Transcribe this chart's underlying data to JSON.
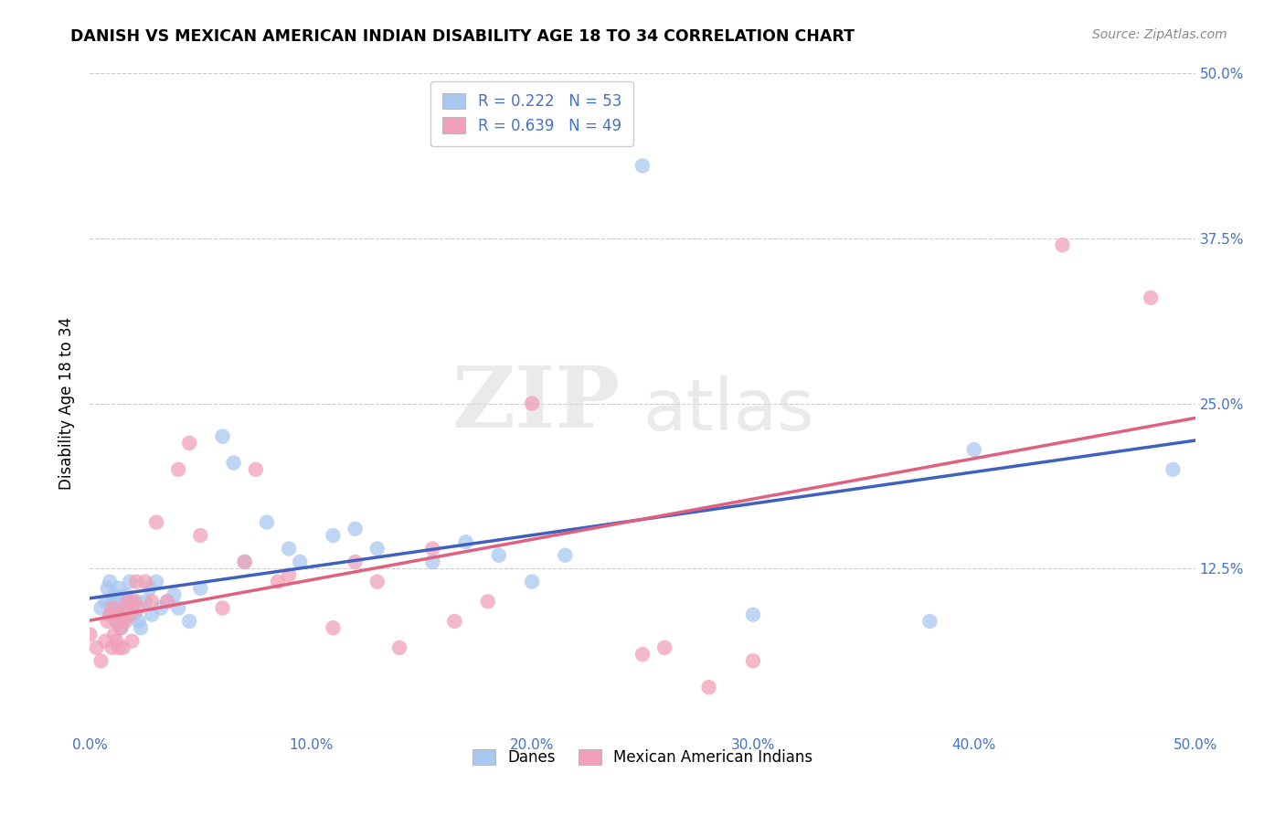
{
  "title": "DANISH VS MEXICAN AMERICAN INDIAN DISABILITY AGE 18 TO 34 CORRELATION CHART",
  "source": "Source: ZipAtlas.com",
  "ylabel": "Disability Age 18 to 34",
  "xlim": [
    0.0,
    0.5
  ],
  "ylim": [
    0.0,
    0.5
  ],
  "xticks": [
    0.0,
    0.1,
    0.2,
    0.3,
    0.4,
    0.5
  ],
  "yticks": [
    0.0,
    0.125,
    0.25,
    0.375,
    0.5
  ],
  "xticklabels": [
    "0.0%",
    "10.0%",
    "20.0%",
    "30.0%",
    "40.0%",
    "50.0%"
  ],
  "yticklabels_left": [
    "",
    "",
    "",
    "",
    ""
  ],
  "yticklabels_right": [
    "",
    "12.5%",
    "25.0%",
    "37.5%",
    "50.0%"
  ],
  "legend_label1": "R = 0.222   N = 53",
  "legend_label2": "R = 0.639   N = 49",
  "legend_label_danes": "Danes",
  "legend_label_mexican": "Mexican American Indians",
  "color_blue": "#A8C8F0",
  "color_pink": "#F0A0B8",
  "color_blue_line": "#4060C0",
  "color_pink_line": "#E06080",
  "color_blue_text": "#4472C4",
  "watermark_zip": "ZIP",
  "watermark_atlas": "atlas",
  "danes_x": [
    0.005,
    0.007,
    0.008,
    0.009,
    0.01,
    0.01,
    0.011,
    0.012,
    0.012,
    0.013,
    0.013,
    0.014,
    0.014,
    0.015,
    0.015,
    0.016,
    0.016,
    0.017,
    0.018,
    0.019,
    0.02,
    0.021,
    0.022,
    0.023,
    0.025,
    0.027,
    0.028,
    0.03,
    0.032,
    0.035,
    0.038,
    0.04,
    0.045,
    0.05,
    0.06,
    0.065,
    0.07,
    0.08,
    0.09,
    0.095,
    0.11,
    0.12,
    0.13,
    0.155,
    0.17,
    0.185,
    0.2,
    0.215,
    0.25,
    0.3,
    0.38,
    0.4,
    0.49
  ],
  "danes_y": [
    0.095,
    0.1,
    0.11,
    0.115,
    0.09,
    0.1,
    0.105,
    0.085,
    0.095,
    0.1,
    0.11,
    0.08,
    0.095,
    0.1,
    0.085,
    0.09,
    0.105,
    0.1,
    0.115,
    0.095,
    0.09,
    0.1,
    0.085,
    0.08,
    0.1,
    0.11,
    0.09,
    0.115,
    0.095,
    0.1,
    0.105,
    0.095,
    0.085,
    0.11,
    0.225,
    0.205,
    0.13,
    0.16,
    0.14,
    0.13,
    0.15,
    0.155,
    0.14,
    0.13,
    0.145,
    0.135,
    0.115,
    0.135,
    0.43,
    0.09,
    0.085,
    0.215,
    0.2
  ],
  "mexican_x": [
    0.0,
    0.003,
    0.005,
    0.007,
    0.008,
    0.009,
    0.01,
    0.01,
    0.011,
    0.012,
    0.012,
    0.013,
    0.013,
    0.014,
    0.015,
    0.015,
    0.016,
    0.017,
    0.018,
    0.019,
    0.02,
    0.021,
    0.022,
    0.025,
    0.028,
    0.03,
    0.035,
    0.04,
    0.045,
    0.05,
    0.06,
    0.07,
    0.075,
    0.085,
    0.09,
    0.11,
    0.12,
    0.13,
    0.14,
    0.155,
    0.165,
    0.18,
    0.2,
    0.25,
    0.26,
    0.28,
    0.3,
    0.44,
    0.48
  ],
  "mexican_y": [
    0.075,
    0.065,
    0.055,
    0.07,
    0.085,
    0.09,
    0.065,
    0.095,
    0.075,
    0.07,
    0.085,
    0.065,
    0.09,
    0.08,
    0.065,
    0.095,
    0.085,
    0.1,
    0.09,
    0.07,
    0.1,
    0.115,
    0.095,
    0.115,
    0.1,
    0.16,
    0.1,
    0.2,
    0.22,
    0.15,
    0.095,
    0.13,
    0.2,
    0.115,
    0.12,
    0.08,
    0.13,
    0.115,
    0.065,
    0.14,
    0.085,
    0.1,
    0.25,
    0.06,
    0.065,
    0.035,
    0.055,
    0.37,
    0.33
  ]
}
